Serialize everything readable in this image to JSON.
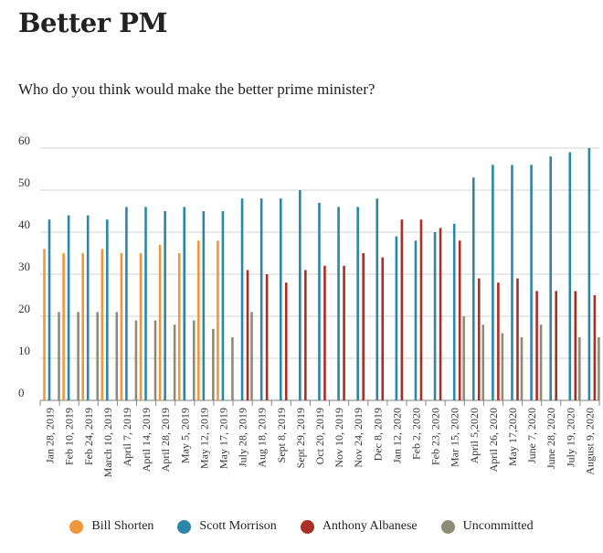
{
  "chart_data": {
    "type": "bar",
    "title": "Better PM",
    "subtitle": "Who do you think would make the better prime minister?",
    "ylim": [
      0,
      60
    ],
    "yticks": [
      "0",
      "10",
      "20",
      "30",
      "40",
      "50",
      "60"
    ],
    "grid": true,
    "legend_position": "bottom-center",
    "categories": [
      "Jan 28, 2019",
      "Feb 10, 2019",
      "Feb 24, 2019",
      "March 10, 2019",
      "April 7, 2019",
      "April 14, 2019",
      "April 28, 2019",
      "May 5, 2019",
      "May 12, 2019",
      "May 17, 2019",
      "July 28, 2019",
      "Aug 18, 2019",
      "Sept 8, 2019",
      "Sept 29, 2019",
      "Oct 20, 2019",
      "Nov 10, 2019",
      "Nov 24, 2019",
      "Dec 8, 2019",
      "Jan 12, 2020",
      "Feb 2, 2020",
      "Feb 23, 2020",
      "Mar 15, 2020",
      "April 5,2020",
      "April 26, 2020",
      "May 17,2020",
      "June 7, 2020",
      "June 28, 2020",
      "July 19, 2020",
      "August 9, 2020"
    ],
    "series": [
      {
        "name": "Bill Shorten",
        "color": "#f0973b",
        "values": [
          36,
          35,
          35,
          36,
          35,
          35,
          37,
          35,
          38,
          38,
          null,
          null,
          null,
          null,
          null,
          null,
          null,
          null,
          null,
          null,
          null,
          null,
          null,
          null,
          null,
          null,
          null,
          null,
          null
        ]
      },
      {
        "name": "Scott Morrison",
        "color": "#2b86a9",
        "values": [
          43,
          44,
          44,
          43,
          46,
          46,
          45,
          46,
          45,
          45,
          48,
          48,
          48,
          50,
          47,
          46,
          46,
          48,
          39,
          38,
          40,
          42,
          53,
          56,
          56,
          56,
          58,
          59,
          60
        ]
      },
      {
        "name": "Anthony Albanese",
        "color": "#ab2e24",
        "values": [
          null,
          null,
          null,
          null,
          null,
          null,
          null,
          null,
          null,
          null,
          31,
          30,
          28,
          31,
          32,
          32,
          35,
          34,
          43,
          43,
          41,
          38,
          29,
          28,
          29,
          26,
          26,
          26,
          25
        ]
      },
      {
        "name": "Uncommitted",
        "color": "#8f8b76",
        "values": [
          21,
          21,
          21,
          21,
          19,
          19,
          18,
          19,
          17,
          15,
          21,
          null,
          null,
          null,
          null,
          null,
          null,
          null,
          null,
          null,
          null,
          20,
          18,
          16,
          15,
          18,
          null,
          15,
          15
        ]
      }
    ]
  }
}
